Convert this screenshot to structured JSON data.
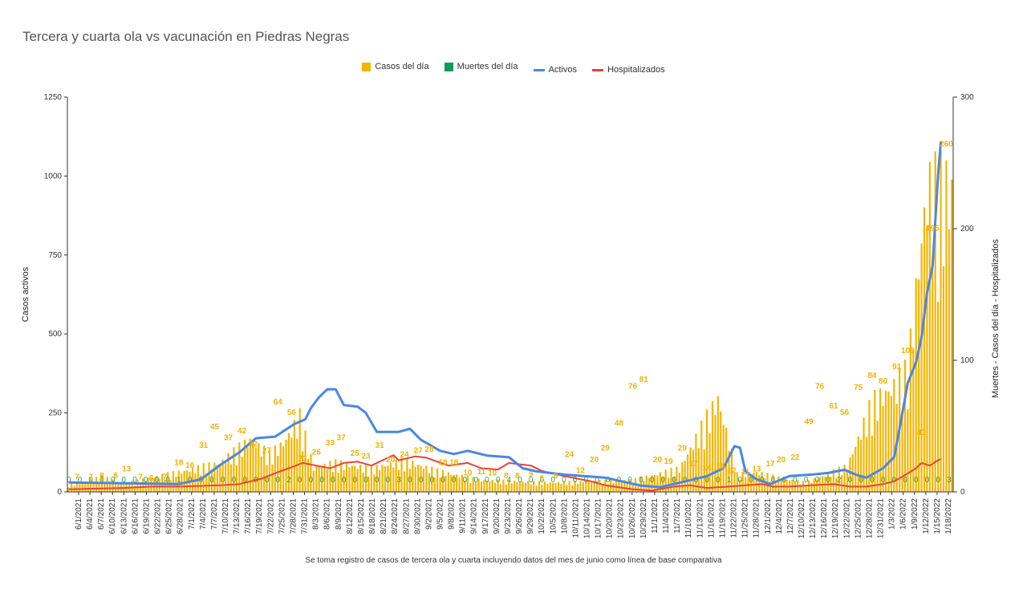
{
  "chart_data": {
    "type": "bar+line",
    "title": "Tercera y cuarta ola vs vacunación en Piedras Negras",
    "caption": "Se toma registro de casos de tercera ola y cuarta incluyendo datos del mes de junio como línea de base comparativa",
    "ylabel_left": "Casos activos",
    "ylabel_right": "Muertes - Casos del día - Hospitalizados",
    "ylim_left": [
      0,
      1250
    ],
    "ylim_right": [
      0,
      300
    ],
    "yticks_left": [
      "0",
      "250",
      "500",
      "750",
      "1000",
      "1250"
    ],
    "yticks_right": [
      "0",
      "100",
      "200",
      "300"
    ],
    "legend_position": "top",
    "grid": "none",
    "x_tick_labels": [
      "6/1/2021",
      "6/4/2021",
      "6/7/2021",
      "6/10/2021",
      "6/13/2021",
      "6/16/2021",
      "6/19/2021",
      "6/22/2021",
      "6/25/2021",
      "6/28/2021",
      "7/1/2021",
      "7/4/2021",
      "7/7/2021",
      "7/10/2021",
      "7/13/2021",
      "7/16/2021",
      "7/19/2021",
      "7/22/2021",
      "7/25/2021",
      "7/28/2021",
      "7/31/2021",
      "8/3/2021",
      "8/6/2021",
      "8/9/2021",
      "8/12/2021",
      "8/15/2021",
      "8/18/2021",
      "8/21/2021",
      "8/24/2021",
      "8/27/2021",
      "8/30/2021",
      "9/2/2021",
      "9/5/2021",
      "9/8/2021",
      "9/11/2021",
      "9/14/2021",
      "9/17/2021",
      "9/20/2021",
      "9/23/2021",
      "9/26/2021",
      "9/29/2021",
      "10/2/2021",
      "10/5/2021",
      "10/8/2021",
      "10/11/2021",
      "10/14/2021",
      "10/17/2021",
      "10/20/2021",
      "10/23/2021",
      "10/26/2021",
      "10/29/2021",
      "11/1/2021",
      "11/4/2021",
      "11/7/2021",
      "11/10/2021",
      "11/13/2021",
      "11/16/2021",
      "11/19/2021",
      "11/22/2021",
      "11/25/2021",
      "11/28/2021",
      "12/1/2021",
      "12/4/2021",
      "12/7/2021",
      "12/10/2021",
      "12/13/2021",
      "12/16/2021",
      "12/19/2021",
      "12/22/2021",
      "12/25/2021",
      "12/28/2021",
      "12/31/2021",
      "1/3/2022",
      "1/6/2022",
      "1/9/2022",
      "1/12/2022",
      "1/15/2022",
      "1/18/2022"
    ],
    "series": [
      {
        "name": "Casos del día",
        "type": "bar",
        "axis": "right",
        "color": "#f4b400",
        "labels_shown": [
          7,
          7,
          8,
          8,
          13,
          7,
          6,
          7,
          18,
          16,
          31,
          45,
          37,
          42,
          32,
          27,
          64,
          56,
          21,
          26,
          33,
          37,
          25,
          23,
          31,
          20,
          24,
          27,
          28,
          18,
          18,
          10,
          11,
          10,
          8,
          8,
          9,
          6,
          8,
          24,
          12,
          20,
          29,
          48,
          76,
          81,
          20,
          19,
          29,
          17,
          14,
          15,
          12,
          11,
          13,
          17,
          20,
          22,
          49,
          76,
          61,
          56,
          75,
          84,
          80,
          91,
          103,
          41,
          196,
          260
        ],
        "keyframes": [
          [
            0,
            6
          ],
          [
            5,
            8
          ],
          [
            12,
            13
          ],
          [
            20,
            7
          ],
          [
            40,
            17
          ],
          [
            55,
            25
          ],
          [
            66,
            45
          ],
          [
            73,
            32
          ],
          [
            78,
            42
          ],
          [
            84,
            64
          ],
          [
            89,
            21
          ],
          [
            97,
            25
          ],
          [
            110,
            20
          ],
          [
            122,
            27
          ],
          [
            134,
            18
          ],
          [
            150,
            10
          ],
          [
            175,
            8
          ],
          [
            205,
            10
          ],
          [
            222,
            20
          ],
          [
            236,
            80
          ],
          [
            243,
            15
          ],
          [
            250,
            17
          ],
          [
            258,
            12
          ],
          [
            268,
            8
          ],
          [
            283,
            22
          ],
          [
            292,
            76
          ],
          [
            300,
            91
          ],
          [
            305,
            103
          ],
          [
            309,
            196
          ],
          [
            312,
            260
          ]
        ]
      },
      {
        "name": "Muertes del día",
        "type": "bar",
        "axis": "right",
        "color": "#0f9d58",
        "labels_shown": [
          0,
          1,
          2,
          3,
          4
        ]
      },
      {
        "name": "Activos",
        "type": "line",
        "axis": "left",
        "color": "#4a86e8",
        "points": [
          [
            0,
            30
          ],
          [
            40,
            25
          ],
          [
            48,
            40
          ],
          [
            55,
            85
          ],
          [
            62,
            125
          ],
          [
            68,
            170
          ],
          [
            75,
            175
          ],
          [
            82,
            215
          ],
          [
            86,
            230
          ],
          [
            88,
            265
          ],
          [
            91,
            300
          ],
          [
            94,
            325
          ],
          [
            97,
            325
          ],
          [
            100,
            275
          ],
          [
            105,
            270
          ],
          [
            108,
            250
          ],
          [
            112,
            190
          ],
          [
            120,
            190
          ],
          [
            124,
            200
          ],
          [
            128,
            165
          ],
          [
            135,
            130
          ],
          [
            140,
            120
          ],
          [
            145,
            130
          ],
          [
            152,
            115
          ],
          [
            160,
            110
          ],
          [
            165,
            75
          ],
          [
            170,
            65
          ],
          [
            180,
            55
          ],
          [
            195,
            45
          ],
          [
            208,
            20
          ],
          [
            215,
            15
          ],
          [
            225,
            35
          ],
          [
            232,
            50
          ],
          [
            238,
            75
          ],
          [
            242,
            145
          ],
          [
            244,
            140
          ],
          [
            246,
            65
          ],
          [
            250,
            40
          ],
          [
            255,
            25
          ],
          [
            262,
            50
          ],
          [
            270,
            55
          ],
          [
            276,
            60
          ],
          [
            282,
            70
          ],
          [
            286,
            55
          ],
          [
            290,
            45
          ],
          [
            296,
            75
          ],
          [
            300,
            110
          ],
          [
            302,
            200
          ],
          [
            305,
            345
          ],
          [
            308,
            410
          ],
          [
            310,
            490
          ],
          [
            312,
            630
          ],
          [
            314,
            715
          ],
          [
            316,
            1000
          ],
          [
            317,
            1110
          ]
        ]
      },
      {
        "name": "Hospitalizados",
        "type": "line",
        "axis": "right",
        "color": "#ea4335",
        "points": [
          [
            0,
            2
          ],
          [
            20,
            3
          ],
          [
            30,
            4
          ],
          [
            40,
            4
          ],
          [
            55,
            5
          ],
          [
            62,
            6
          ],
          [
            70,
            10
          ],
          [
            76,
            15
          ],
          [
            80,
            18
          ],
          [
            85,
            22
          ],
          [
            90,
            20
          ],
          [
            95,
            18
          ],
          [
            100,
            22
          ],
          [
            105,
            23
          ],
          [
            110,
            20
          ],
          [
            115,
            25
          ],
          [
            118,
            28
          ],
          [
            120,
            24
          ],
          [
            126,
            27
          ],
          [
            130,
            26
          ],
          [
            138,
            20
          ],
          [
            145,
            22
          ],
          [
            150,
            18
          ],
          [
            156,
            17
          ],
          [
            160,
            22
          ],
          [
            168,
            20
          ],
          [
            172,
            16
          ],
          [
            180,
            12
          ],
          [
            190,
            8
          ],
          [
            195,
            5
          ],
          [
            205,
            2
          ],
          [
            212,
            1
          ],
          [
            220,
            4
          ],
          [
            226,
            5
          ],
          [
            232,
            3
          ],
          [
            240,
            4
          ],
          [
            246,
            5
          ],
          [
            252,
            6
          ],
          [
            256,
            4
          ],
          [
            262,
            4
          ],
          [
            270,
            5
          ],
          [
            278,
            6
          ],
          [
            284,
            4
          ],
          [
            290,
            4
          ],
          [
            296,
            6
          ],
          [
            300,
            8
          ],
          [
            305,
            14
          ],
          [
            308,
            18
          ],
          [
            310,
            22
          ],
          [
            313,
            20
          ],
          [
            316,
            24
          ],
          [
            317,
            25
          ]
        ]
      }
    ]
  }
}
